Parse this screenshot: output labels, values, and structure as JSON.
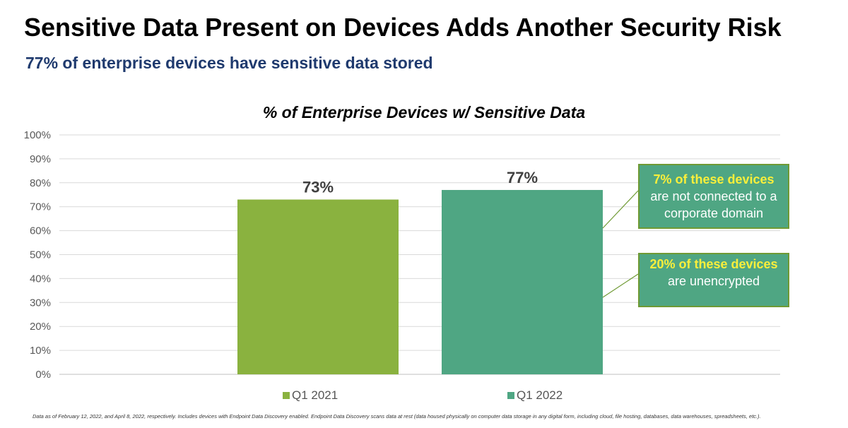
{
  "slide": {
    "title": "Sensitive Data Present on Devices Adds Another Security Risk",
    "subtitle": "77% of enterprise devices have sensitive data stored"
  },
  "chart_data": {
    "type": "bar",
    "title": "% of Enterprise Devices w/ Sensitive Data",
    "categories": [
      "Q1 2021",
      "Q1 2022"
    ],
    "values": [
      73,
      77
    ],
    "data_labels": [
      "73%",
      "77%"
    ],
    "colors": [
      "#8ab23f",
      "#4fa683"
    ],
    "ylim": [
      0,
      100
    ],
    "yticks": [
      "0%",
      "10%",
      "20%",
      "30%",
      "40%",
      "50%",
      "60%",
      "70%",
      "80%",
      "90%",
      "100%"
    ],
    "xlabel": "",
    "ylabel": "",
    "grid": true,
    "legend": [
      "Q1 2021",
      "Q1 2022"
    ],
    "legend_position": "bottom",
    "annotations": [
      {
        "highlight": "7% of these devices",
        "text": "are not connected to a corporate domain",
        "color": "#4fa683",
        "highlight_color": "#f9ef3b"
      },
      {
        "highlight": "20% of these devices",
        "text": "are unencrypted",
        "color": "#4fa683",
        "highlight_color": "#f9ef3b"
      }
    ]
  },
  "footnote": "Data as of February 12, 2022, and April 8, 2022, respectively. Includes devices with Endpoint Data Discovery enabled. Endpoint Data Discovery scans data at rest (data housed physically on computer data storage in any digital form, including cloud, file hosting, databases, data warehouses, spreadsheets, etc.)."
}
